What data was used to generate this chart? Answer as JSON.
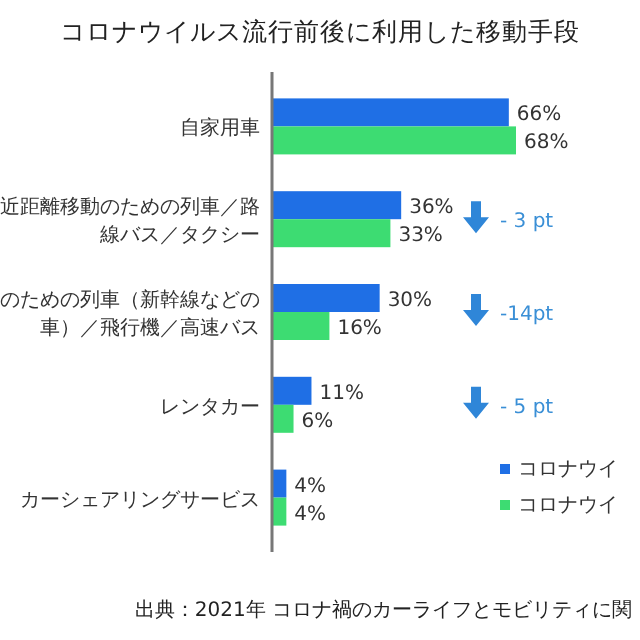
{
  "chart_data": {
    "type": "bar",
    "orientation": "horizontal",
    "title": "コロナウイルス流行前後に利用した移動手段",
    "categories": [
      "自家用車",
      "近距離移動のための列車／路線バス／タクシー",
      "のための列車（新幹線などの車）／飛行機／高速バス",
      "レンタカー",
      "カーシェアリングサービス"
    ],
    "series": [
      {
        "name": "コロナウイ",
        "color": "#1f6fe5",
        "values": [
          66,
          36,
          30,
          11,
          4
        ],
        "value_labels": [
          "66%",
          "36%",
          "30%",
          "11%",
          "4%"
        ]
      },
      {
        "name": "コロナウイ",
        "color": "#3ddc72",
        "values": [
          68,
          33,
          16,
          6,
          4
        ],
        "value_labels": [
          "68%",
          "33%",
          "16%",
          "6%",
          "4%"
        ]
      }
    ],
    "legend": "bottom right",
    "annotations": [
      "- 3 pt",
      "-14pt",
      "- 5 pt",
      "出典：2021年 コロナ禍のカーライフとモビリティに関"
    ]
  }
}
